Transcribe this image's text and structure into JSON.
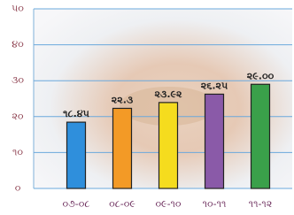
{
  "chart_data": {
    "type": "bar",
    "categories": [
      "૦૭-૦૮",
      "૦૮-૦૯",
      "૦૯-૧૦",
      "૧૦-૧૧",
      "૧૧-૧૨"
    ],
    "series": [
      {
        "colors": [
          "#2f8fdc",
          "#f39a26",
          "#f5dc1e",
          "#8a5aa8",
          "#3aa04a"
        ],
        "values": [
          18.45,
          22.3,
          23.92,
          26.25,
          29.0
        ],
        "value_labels": [
          "૧૮.૪૫",
          "૨૨.૩",
          "૨૩.૯૨",
          "૨૬.૨૫",
          "૨૯.૦૦"
        ]
      }
    ],
    "ylim": [
      0,
      50
    ],
    "yticks": [
      {
        "value": 0,
        "label": "૦"
      },
      {
        "value": 10,
        "label": "૧૦"
      },
      {
        "value": 20,
        "label": "૨૦"
      },
      {
        "value": 30,
        "label": "૩૦"
      },
      {
        "value": 40,
        "label": "૪૦"
      },
      {
        "value": 50,
        "label": "૫૦"
      }
    ],
    "grid": true
  }
}
